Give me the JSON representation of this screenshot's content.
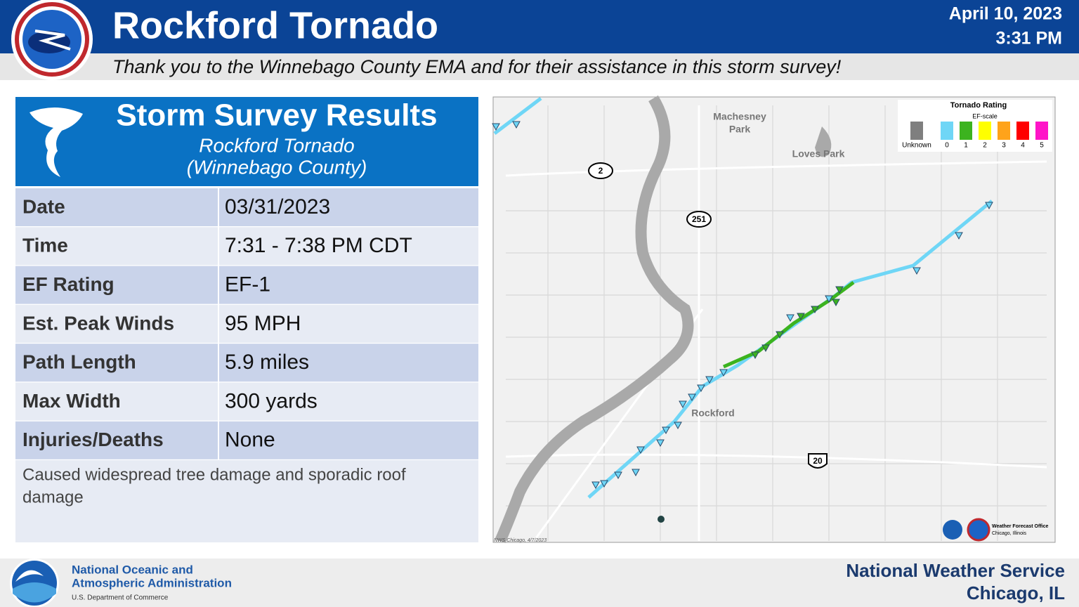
{
  "header": {
    "title": "Rockford Tornado",
    "date": "April 10, 2023",
    "time": "3:31 PM",
    "subtitle": "Thank you to the Winnebago County EMA and for their assistance in this storm survey!"
  },
  "survey": {
    "title": "Storm Survey Results",
    "event": "Rockford Tornado",
    "county": "(Winnebago County)",
    "rows": [
      [
        "Date",
        "03/31/2023"
      ],
      [
        "Time",
        "7:31 - 7:38 PM CDT"
      ],
      [
        "EF Rating",
        "EF-1"
      ],
      [
        "Est. Peak Winds",
        "95 MPH"
      ],
      [
        "Path Length",
        "5.9 miles"
      ],
      [
        "Max Width",
        "300 yards"
      ],
      [
        "Injuries/Deaths",
        "None"
      ]
    ],
    "notes": [
      "Caused widespread tree damage and sporadic roof",
      "damage"
    ]
  },
  "map": {
    "places": [
      "Machesney",
      "Park",
      "Loves Park",
      "Rockford"
    ],
    "routes": [
      "2",
      "251",
      "20"
    ],
    "legend": {
      "title": "Tornado Rating",
      "scale": "EF-scale",
      "items": [
        {
          "label": "Unknown",
          "color": "#7f7f7f"
        },
        {
          "label": "0",
          "color": "#6fd6f6"
        },
        {
          "label": "1",
          "color": "#3cb31f"
        },
        {
          "label": "2",
          "color": "#ffff00"
        },
        {
          "label": "3",
          "color": "#ffa31a"
        },
        {
          "label": "4",
          "color": "#ff0000"
        },
        {
          "label": "5",
          "color": "#ff14c8"
        }
      ]
    },
    "credit": "NWS Chicago, 4/7/2023",
    "office": [
      "Weather Forecast Office",
      "Chicago, Illinois"
    ]
  },
  "footer": {
    "agency": [
      "National Oceanic and",
      "Atmospheric Administration"
    ],
    "department": "U.S. Department of Commerce",
    "nws": "National Weather Service",
    "office": "Chicago, IL"
  }
}
